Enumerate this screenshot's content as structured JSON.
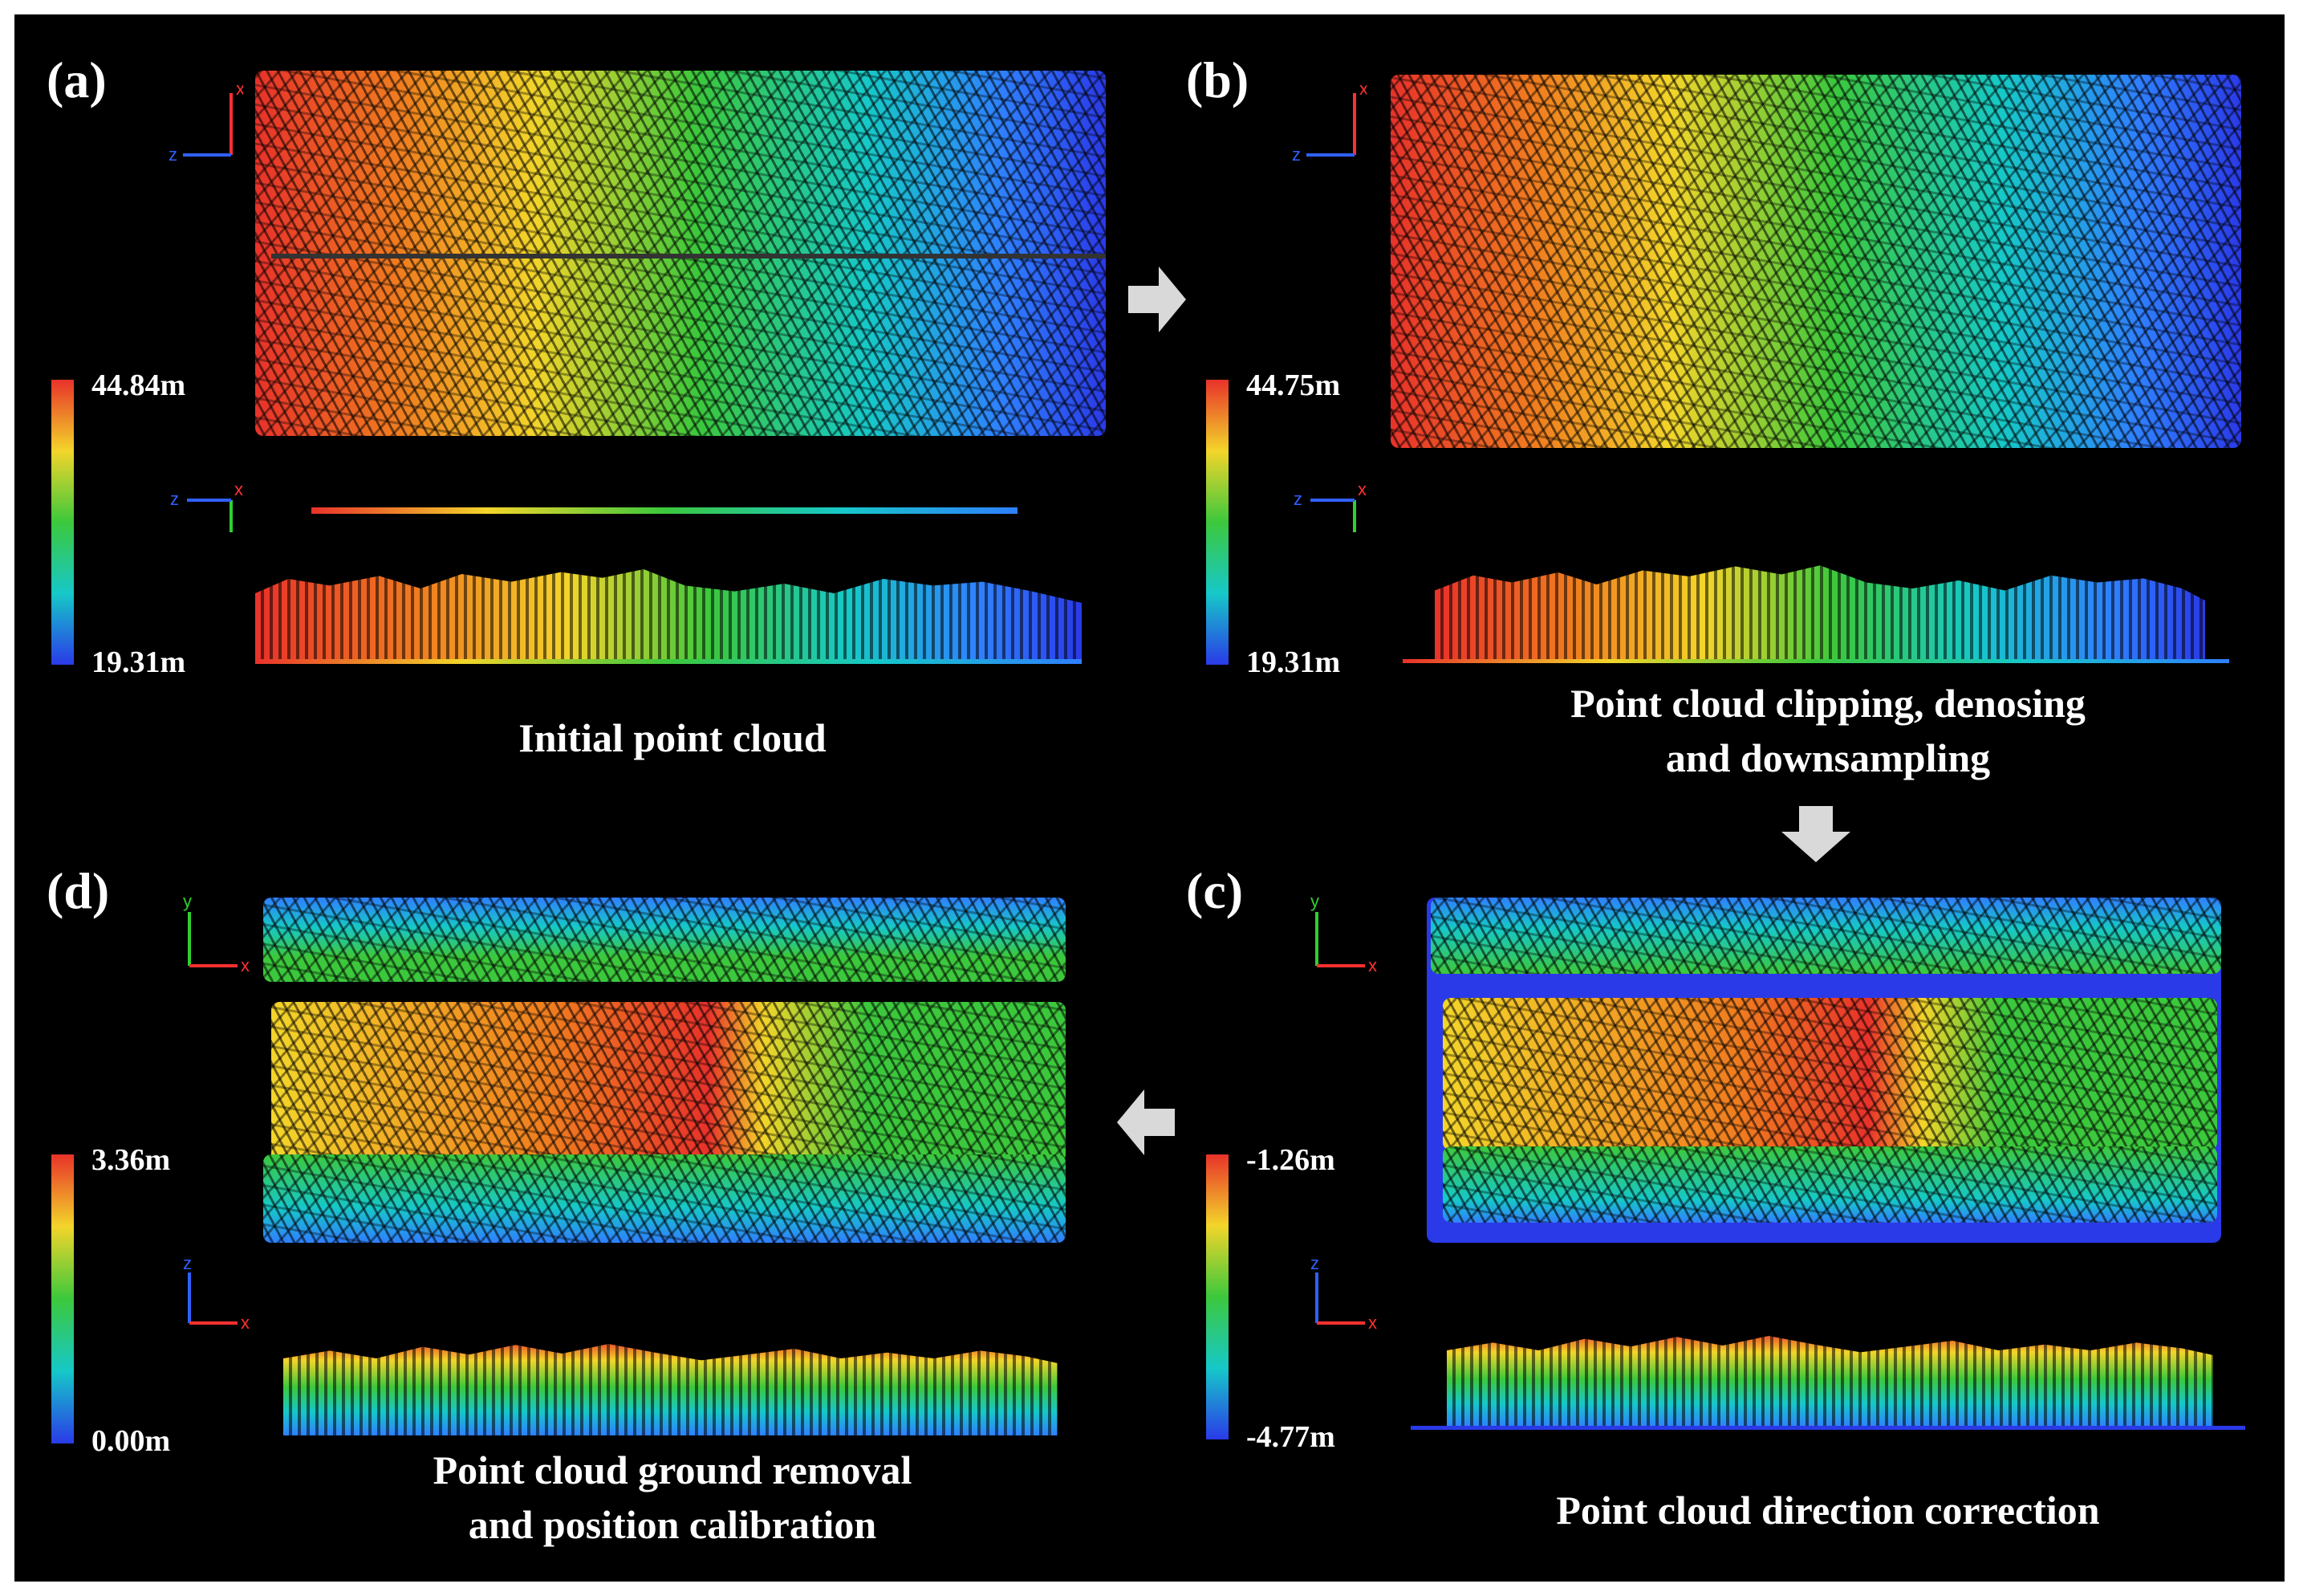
{
  "figure": {
    "panels": [
      {
        "id": "a",
        "label": "(a)",
        "caption_lines": [
          "Initial point cloud"
        ],
        "colorbar": {
          "max_label": "44.84m",
          "min_label": "19.31m"
        },
        "views": [
          "top-view",
          "side-view"
        ]
      },
      {
        "id": "b",
        "label": "(b)",
        "caption_lines": [
          "Point cloud clipping, denosing",
          "and downsampling"
        ],
        "colorbar": {
          "max_label": "44.75m",
          "min_label": "19.31m"
        },
        "views": [
          "top-view",
          "side-view"
        ]
      },
      {
        "id": "c",
        "label": "(c)",
        "caption_lines": [
          "Point cloud direction correction"
        ],
        "colorbar": {
          "max_label": "-1.26m",
          "min_label": "-4.77m"
        },
        "views": [
          "top-view",
          "side-view"
        ]
      },
      {
        "id": "d",
        "label": "(d)",
        "caption_lines": [
          "Point cloud ground removal",
          "and position calibration"
        ],
        "colorbar": {
          "max_label": "3.36m",
          "min_label": "0.00m"
        },
        "views": [
          "top-view",
          "side-view"
        ]
      }
    ],
    "axis_labels": {
      "x": "x",
      "y": "y",
      "z": "z"
    },
    "flow_arrows": [
      "right-arrow-icon",
      "down-arrow-icon",
      "left-arrow-icon"
    ],
    "colors": {
      "background": "#000000",
      "text": "#ffffff",
      "colormap": [
        "#e8322a",
        "#f07d1f",
        "#f3d52a",
        "#3cc83c",
        "#16c8c8",
        "#2f7fff",
        "#2a3ae8"
      ],
      "arrow": "#d9d9d9"
    }
  }
}
